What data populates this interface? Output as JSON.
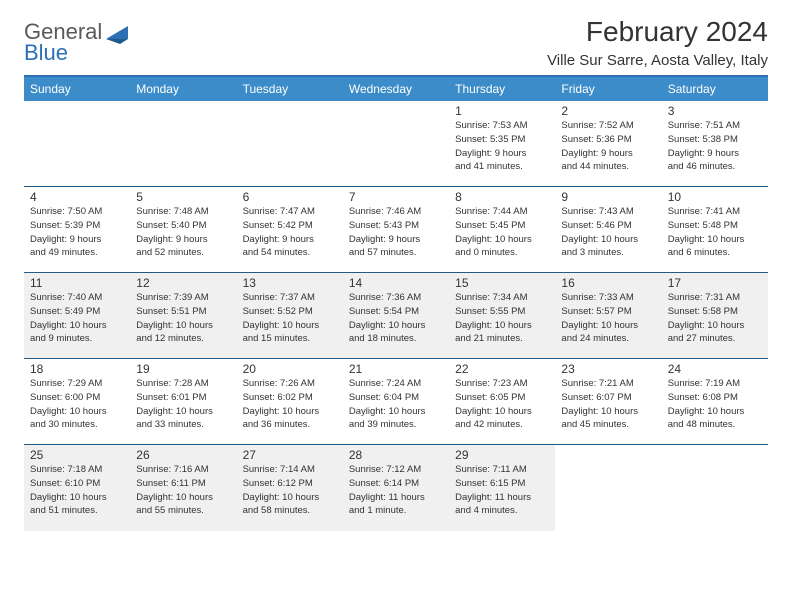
{
  "logo": {
    "word1": "General",
    "word2": "Blue"
  },
  "header": {
    "month_title": "February 2024",
    "location": "Ville Sur Sarre, Aosta Valley, Italy"
  },
  "colors": {
    "header_bg": "#3c8cc9",
    "border": "#1e5a8a",
    "shade": "#f0f0f0",
    "logo_gray": "#5a5a5a",
    "logo_blue": "#2e6fb4"
  },
  "weekdays": [
    "Sunday",
    "Monday",
    "Tuesday",
    "Wednesday",
    "Thursday",
    "Friday",
    "Saturday"
  ],
  "weeks": [
    [
      null,
      null,
      null,
      null,
      {
        "n": "1",
        "sr": "Sunrise: 7:53 AM",
        "ss": "Sunset: 5:35 PM",
        "d1": "Daylight: 9 hours",
        "d2": "and 41 minutes."
      },
      {
        "n": "2",
        "sr": "Sunrise: 7:52 AM",
        "ss": "Sunset: 5:36 PM",
        "d1": "Daylight: 9 hours",
        "d2": "and 44 minutes."
      },
      {
        "n": "3",
        "sr": "Sunrise: 7:51 AM",
        "ss": "Sunset: 5:38 PM",
        "d1": "Daylight: 9 hours",
        "d2": "and 46 minutes."
      }
    ],
    [
      {
        "n": "4",
        "sr": "Sunrise: 7:50 AM",
        "ss": "Sunset: 5:39 PM",
        "d1": "Daylight: 9 hours",
        "d2": "and 49 minutes."
      },
      {
        "n": "5",
        "sr": "Sunrise: 7:48 AM",
        "ss": "Sunset: 5:40 PM",
        "d1": "Daylight: 9 hours",
        "d2": "and 52 minutes."
      },
      {
        "n": "6",
        "sr": "Sunrise: 7:47 AM",
        "ss": "Sunset: 5:42 PM",
        "d1": "Daylight: 9 hours",
        "d2": "and 54 minutes."
      },
      {
        "n": "7",
        "sr": "Sunrise: 7:46 AM",
        "ss": "Sunset: 5:43 PM",
        "d1": "Daylight: 9 hours",
        "d2": "and 57 minutes."
      },
      {
        "n": "8",
        "sr": "Sunrise: 7:44 AM",
        "ss": "Sunset: 5:45 PM",
        "d1": "Daylight: 10 hours",
        "d2": "and 0 minutes."
      },
      {
        "n": "9",
        "sr": "Sunrise: 7:43 AM",
        "ss": "Sunset: 5:46 PM",
        "d1": "Daylight: 10 hours",
        "d2": "and 3 minutes."
      },
      {
        "n": "10",
        "sr": "Sunrise: 7:41 AM",
        "ss": "Sunset: 5:48 PM",
        "d1": "Daylight: 10 hours",
        "d2": "and 6 minutes."
      }
    ],
    [
      {
        "n": "11",
        "sr": "Sunrise: 7:40 AM",
        "ss": "Sunset: 5:49 PM",
        "d1": "Daylight: 10 hours",
        "d2": "and 9 minutes."
      },
      {
        "n": "12",
        "sr": "Sunrise: 7:39 AM",
        "ss": "Sunset: 5:51 PM",
        "d1": "Daylight: 10 hours",
        "d2": "and 12 minutes."
      },
      {
        "n": "13",
        "sr": "Sunrise: 7:37 AM",
        "ss": "Sunset: 5:52 PM",
        "d1": "Daylight: 10 hours",
        "d2": "and 15 minutes."
      },
      {
        "n": "14",
        "sr": "Sunrise: 7:36 AM",
        "ss": "Sunset: 5:54 PM",
        "d1": "Daylight: 10 hours",
        "d2": "and 18 minutes."
      },
      {
        "n": "15",
        "sr": "Sunrise: 7:34 AM",
        "ss": "Sunset: 5:55 PM",
        "d1": "Daylight: 10 hours",
        "d2": "and 21 minutes."
      },
      {
        "n": "16",
        "sr": "Sunrise: 7:33 AM",
        "ss": "Sunset: 5:57 PM",
        "d1": "Daylight: 10 hours",
        "d2": "and 24 minutes."
      },
      {
        "n": "17",
        "sr": "Sunrise: 7:31 AM",
        "ss": "Sunset: 5:58 PM",
        "d1": "Daylight: 10 hours",
        "d2": "and 27 minutes."
      }
    ],
    [
      {
        "n": "18",
        "sr": "Sunrise: 7:29 AM",
        "ss": "Sunset: 6:00 PM",
        "d1": "Daylight: 10 hours",
        "d2": "and 30 minutes."
      },
      {
        "n": "19",
        "sr": "Sunrise: 7:28 AM",
        "ss": "Sunset: 6:01 PM",
        "d1": "Daylight: 10 hours",
        "d2": "and 33 minutes."
      },
      {
        "n": "20",
        "sr": "Sunrise: 7:26 AM",
        "ss": "Sunset: 6:02 PM",
        "d1": "Daylight: 10 hours",
        "d2": "and 36 minutes."
      },
      {
        "n": "21",
        "sr": "Sunrise: 7:24 AM",
        "ss": "Sunset: 6:04 PM",
        "d1": "Daylight: 10 hours",
        "d2": "and 39 minutes."
      },
      {
        "n": "22",
        "sr": "Sunrise: 7:23 AM",
        "ss": "Sunset: 6:05 PM",
        "d1": "Daylight: 10 hours",
        "d2": "and 42 minutes."
      },
      {
        "n": "23",
        "sr": "Sunrise: 7:21 AM",
        "ss": "Sunset: 6:07 PM",
        "d1": "Daylight: 10 hours",
        "d2": "and 45 minutes."
      },
      {
        "n": "24",
        "sr": "Sunrise: 7:19 AM",
        "ss": "Sunset: 6:08 PM",
        "d1": "Daylight: 10 hours",
        "d2": "and 48 minutes."
      }
    ],
    [
      {
        "n": "25",
        "sr": "Sunrise: 7:18 AM",
        "ss": "Sunset: 6:10 PM",
        "d1": "Daylight: 10 hours",
        "d2": "and 51 minutes."
      },
      {
        "n": "26",
        "sr": "Sunrise: 7:16 AM",
        "ss": "Sunset: 6:11 PM",
        "d1": "Daylight: 10 hours",
        "d2": "and 55 minutes."
      },
      {
        "n": "27",
        "sr": "Sunrise: 7:14 AM",
        "ss": "Sunset: 6:12 PM",
        "d1": "Daylight: 10 hours",
        "d2": "and 58 minutes."
      },
      {
        "n": "28",
        "sr": "Sunrise: 7:12 AM",
        "ss": "Sunset: 6:14 PM",
        "d1": "Daylight: 11 hours",
        "d2": "and 1 minute."
      },
      {
        "n": "29",
        "sr": "Sunrise: 7:11 AM",
        "ss": "Sunset: 6:15 PM",
        "d1": "Daylight: 11 hours",
        "d2": "and 4 minutes."
      },
      null,
      null
    ]
  ]
}
